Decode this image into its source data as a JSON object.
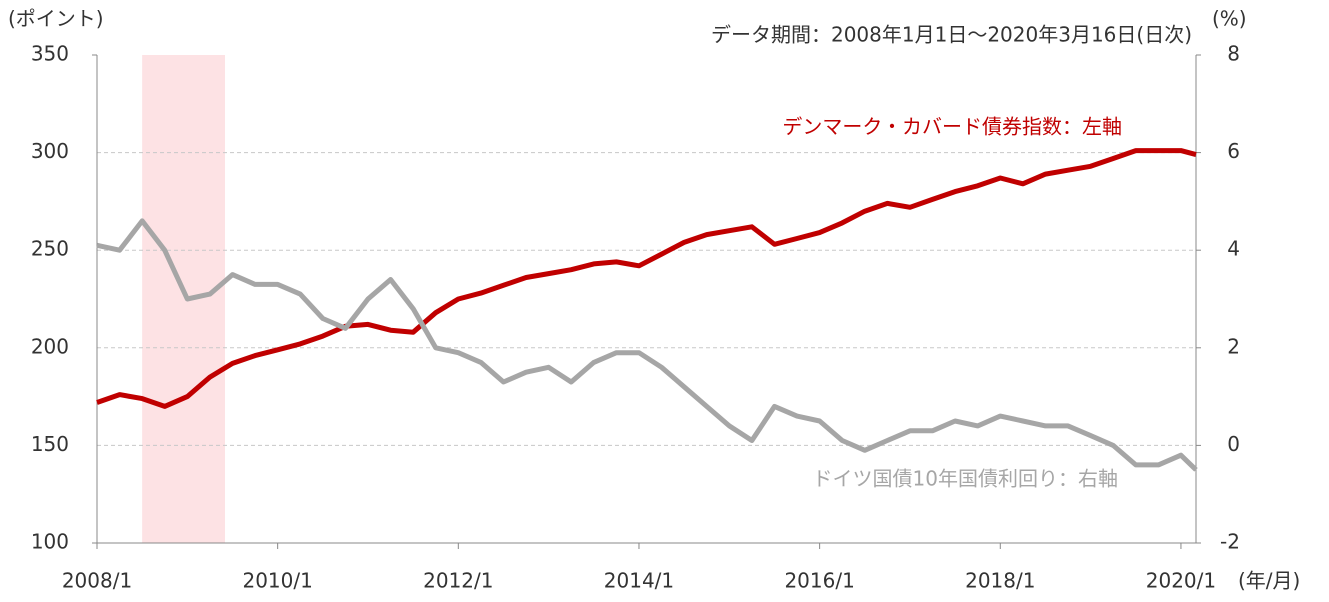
{
  "chart_data": {
    "type": "line",
    "annotation": "データ期間：2008年1月1日～2020年3月16日(日次)",
    "y_label": "(ポイント)",
    "y2_label": "(%)",
    "x_label": "(年/月)",
    "shaded_period": [
      "2008/7",
      "2009/6"
    ],
    "shaded_color": "#fde2e4",
    "x": [
      "2008/1",
      "2008/4",
      "2008/7",
      "2008/10",
      "2009/1",
      "2009/4",
      "2009/7",
      "2009/10",
      "2010/1",
      "2010/4",
      "2010/7",
      "2010/10",
      "2011/1",
      "2011/4",
      "2011/7",
      "2011/10",
      "2012/1",
      "2012/4",
      "2012/7",
      "2012/10",
      "2013/1",
      "2013/4",
      "2013/7",
      "2013/10",
      "2014/1",
      "2014/4",
      "2014/7",
      "2014/10",
      "2015/1",
      "2015/4",
      "2015/7",
      "2015/10",
      "2016/1",
      "2016/4",
      "2016/7",
      "2016/10",
      "2017/1",
      "2017/4",
      "2017/7",
      "2017/10",
      "2018/1",
      "2018/4",
      "2018/7",
      "2018/10",
      "2019/1",
      "2019/4",
      "2019/7",
      "2019/10",
      "2020/1",
      "2020/3"
    ],
    "xlim": [
      "2008/1",
      "2020/3"
    ],
    "xticks": [
      "2008/1",
      "2010/1",
      "2012/1",
      "2014/1",
      "2016/1",
      "2018/1",
      "2020/1"
    ],
    "ylim": [
      100,
      350
    ],
    "yticks": [
      100,
      150,
      200,
      250,
      300,
      350
    ],
    "y2lim": [
      -2,
      8
    ],
    "y2ticks": [
      -2,
      0,
      2,
      4,
      6,
      8
    ],
    "grid": true,
    "series": [
      {
        "name": "デンマーク・カバード債券指数：左軸",
        "color": "#c00000",
        "axis": "y",
        "values": [
          172,
          176,
          174,
          170,
          175,
          185,
          192,
          196,
          199,
          202,
          206,
          211,
          212,
          209,
          208,
          218,
          225,
          228,
          232,
          236,
          238,
          240,
          243,
          244,
          242,
          248,
          254,
          258,
          260,
          262,
          253,
          256,
          259,
          264,
          270,
          274,
          272,
          276,
          280,
          283,
          287,
          284,
          289,
          291,
          293,
          297,
          301,
          301,
          301,
          299
        ]
      },
      {
        "name": "ドイツ国債10年国債利回り：右軸",
        "color": "#a6a6a6",
        "axis": "y2",
        "values": [
          4.1,
          4.0,
          4.6,
          4.0,
          3.0,
          3.1,
          3.5,
          3.3,
          3.3,
          3.1,
          2.6,
          2.4,
          3.0,
          3.4,
          2.8,
          2.0,
          1.9,
          1.7,
          1.3,
          1.5,
          1.6,
          1.3,
          1.7,
          1.9,
          1.9,
          1.6,
          1.2,
          0.8,
          0.4,
          0.1,
          0.8,
          0.6,
          0.5,
          0.1,
          -0.1,
          0.1,
          0.3,
          0.3,
          0.5,
          0.4,
          0.6,
          0.5,
          0.4,
          0.4,
          0.2,
          0.0,
          -0.4,
          -0.4,
          -0.2,
          -0.5
        ]
      }
    ]
  }
}
